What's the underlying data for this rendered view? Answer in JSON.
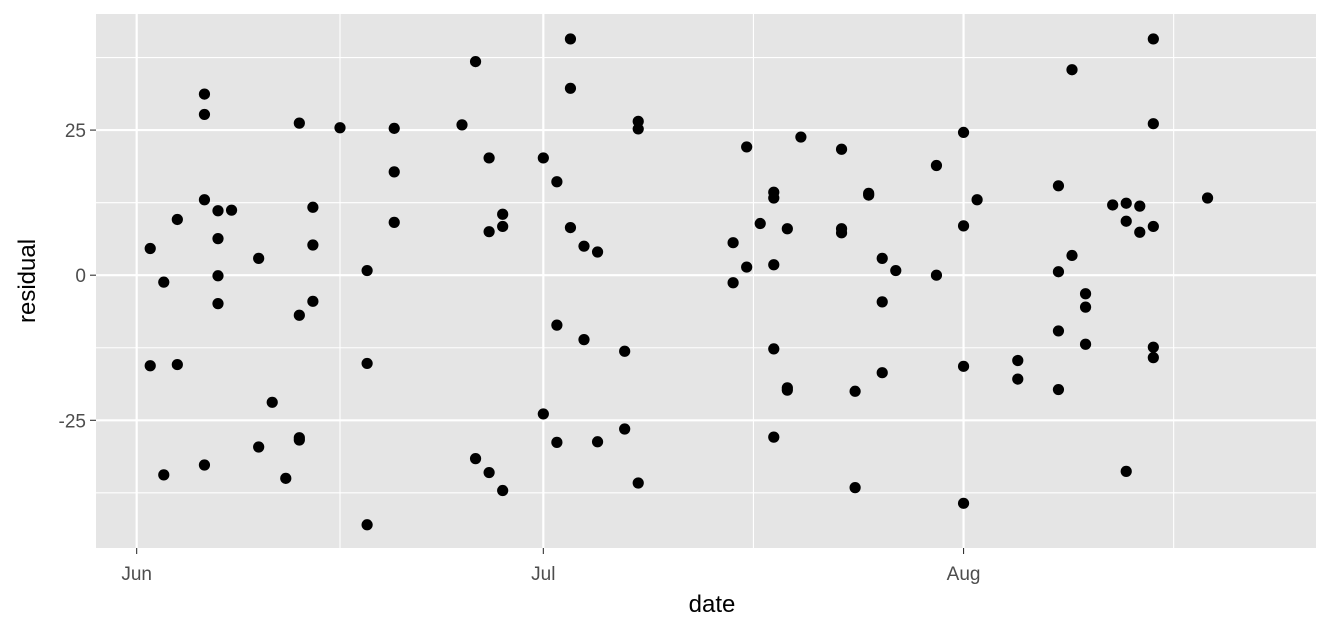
{
  "chart_data": {
    "type": "scatter",
    "xlabel": "date",
    "ylabel": "residual",
    "x_tick_labels": [
      "Jun",
      "Jul",
      "Aug"
    ],
    "x_tick_dates": [
      "2014-06-01",
      "2014-07-01",
      "2014-08-01"
    ],
    "y_tick_labels": [
      "-25",
      "0",
      "25"
    ],
    "y_ticks": [
      -25,
      0,
      25
    ],
    "xlim": [
      "2014-05-29",
      "2014-08-27"
    ],
    "ylim": [
      -47,
      45
    ],
    "grid": true,
    "legend": "none",
    "colors": {
      "panel": "#e5e5e5",
      "grid": "#ffffff",
      "point": "#000000"
    },
    "points": [
      {
        "x": "2014-06-02",
        "y": 4.6
      },
      {
        "x": "2014-06-02",
        "y": -15.6
      },
      {
        "x": "2014-06-03",
        "y": -1.2
      },
      {
        "x": "2014-06-03",
        "y": -34.4
      },
      {
        "x": "2014-06-04",
        "y": 9.6
      },
      {
        "x": "2014-06-04",
        "y": -15.4
      },
      {
        "x": "2014-06-06",
        "y": 31.2
      },
      {
        "x": "2014-06-06",
        "y": 27.7
      },
      {
        "x": "2014-06-06",
        "y": 13.0
      },
      {
        "x": "2014-06-06",
        "y": -32.7
      },
      {
        "x": "2014-06-07",
        "y": 11.1
      },
      {
        "x": "2014-06-07",
        "y": 6.3
      },
      {
        "x": "2014-06-07",
        "y": -0.1
      },
      {
        "x": "2014-06-07",
        "y": -4.9
      },
      {
        "x": "2014-06-08",
        "y": 11.2
      },
      {
        "x": "2014-06-10",
        "y": 2.9
      },
      {
        "x": "2014-06-10",
        "y": -29.6
      },
      {
        "x": "2014-06-11",
        "y": -21.9
      },
      {
        "x": "2014-06-12",
        "y": -35.0
      },
      {
        "x": "2014-06-13",
        "y": 26.2
      },
      {
        "x": "2014-06-13",
        "y": -6.9
      },
      {
        "x": "2014-06-13",
        "y": -28.0
      },
      {
        "x": "2014-06-13",
        "y": -28.4
      },
      {
        "x": "2014-06-14",
        "y": 11.7
      },
      {
        "x": "2014-06-14",
        "y": 5.2
      },
      {
        "x": "2014-06-14",
        "y": -4.5
      },
      {
        "x": "2014-06-16",
        "y": 25.4
      },
      {
        "x": "2014-06-18",
        "y": 0.8
      },
      {
        "x": "2014-06-18",
        "y": -15.2
      },
      {
        "x": "2014-06-18",
        "y": -43.0
      },
      {
        "x": "2014-06-20",
        "y": 25.3
      },
      {
        "x": "2014-06-20",
        "y": 17.8
      },
      {
        "x": "2014-06-20",
        "y": 9.1
      },
      {
        "x": "2014-06-25",
        "y": 25.9
      },
      {
        "x": "2014-06-26",
        "y": 36.8
      },
      {
        "x": "2014-06-26",
        "y": -31.6
      },
      {
        "x": "2014-06-27",
        "y": 20.2
      },
      {
        "x": "2014-06-27",
        "y": 7.5
      },
      {
        "x": "2014-06-27",
        "y": -34.0
      },
      {
        "x": "2014-06-28",
        "y": 10.5
      },
      {
        "x": "2014-06-28",
        "y": 8.4
      },
      {
        "x": "2014-06-28",
        "y": -37.1
      },
      {
        "x": "2014-07-01",
        "y": 20.2
      },
      {
        "x": "2014-07-01",
        "y": -23.9
      },
      {
        "x": "2014-07-02",
        "y": 16.1
      },
      {
        "x": "2014-07-02",
        "y": -8.6
      },
      {
        "x": "2014-07-02",
        "y": -28.8
      },
      {
        "x": "2014-07-03",
        "y": 40.7
      },
      {
        "x": "2014-07-03",
        "y": 32.2
      },
      {
        "x": "2014-07-03",
        "y": 8.2
      },
      {
        "x": "2014-07-04",
        "y": 5.0
      },
      {
        "x": "2014-07-04",
        "y": -11.1
      },
      {
        "x": "2014-07-05",
        "y": 4.0
      },
      {
        "x": "2014-07-05",
        "y": -28.7
      },
      {
        "x": "2014-07-07",
        "y": -13.1
      },
      {
        "x": "2014-07-07",
        "y": -26.5
      },
      {
        "x": "2014-07-08",
        "y": 26.5
      },
      {
        "x": "2014-07-08",
        "y": 25.2
      },
      {
        "x": "2014-07-08",
        "y": -35.8
      },
      {
        "x": "2014-07-15",
        "y": 5.6
      },
      {
        "x": "2014-07-15",
        "y": -1.3
      },
      {
        "x": "2014-07-16",
        "y": 22.1
      },
      {
        "x": "2014-07-16",
        "y": 1.4
      },
      {
        "x": "2014-07-17",
        "y": 8.9
      },
      {
        "x": "2014-07-18",
        "y": 14.3
      },
      {
        "x": "2014-07-18",
        "y": 13.3
      },
      {
        "x": "2014-07-18",
        "y": 1.8
      },
      {
        "x": "2014-07-18",
        "y": -12.7
      },
      {
        "x": "2014-07-18",
        "y": -27.9
      },
      {
        "x": "2014-07-19",
        "y": 8.0
      },
      {
        "x": "2014-07-19",
        "y": -19.4
      },
      {
        "x": "2014-07-19",
        "y": -19.8
      },
      {
        "x": "2014-07-20",
        "y": 23.8
      },
      {
        "x": "2014-07-23",
        "y": 21.7
      },
      {
        "x": "2014-07-23",
        "y": 8.0
      },
      {
        "x": "2014-07-23",
        "y": 7.3
      },
      {
        "x": "2014-07-24",
        "y": -20.0
      },
      {
        "x": "2014-07-24",
        "y": -36.6
      },
      {
        "x": "2014-07-25",
        "y": 14.1
      },
      {
        "x": "2014-07-25",
        "y": 13.8
      },
      {
        "x": "2014-07-26",
        "y": 2.9
      },
      {
        "x": "2014-07-26",
        "y": -4.6
      },
      {
        "x": "2014-07-26",
        "y": -16.8
      },
      {
        "x": "2014-07-27",
        "y": 0.8
      },
      {
        "x": "2014-07-30",
        "y": 18.9
      },
      {
        "x": "2014-07-30",
        "y": 0.0
      },
      {
        "x": "2014-08-01",
        "y": 24.6
      },
      {
        "x": "2014-08-01",
        "y": 8.5
      },
      {
        "x": "2014-08-01",
        "y": -15.7
      },
      {
        "x": "2014-08-01",
        "y": -39.3
      },
      {
        "x": "2014-08-02",
        "y": 13.0
      },
      {
        "x": "2014-08-05",
        "y": -14.7
      },
      {
        "x": "2014-08-05",
        "y": -17.9
      },
      {
        "x": "2014-08-08",
        "y": 15.4
      },
      {
        "x": "2014-08-08",
        "y": 0.6
      },
      {
        "x": "2014-08-08",
        "y": -9.6
      },
      {
        "x": "2014-08-08",
        "y": -19.7
      },
      {
        "x": "2014-08-09",
        "y": 35.4
      },
      {
        "x": "2014-08-09",
        "y": 3.4
      },
      {
        "x": "2014-08-10",
        "y": -3.2
      },
      {
        "x": "2014-08-10",
        "y": -5.5
      },
      {
        "x": "2014-08-10",
        "y": -11.9
      },
      {
        "x": "2014-08-12",
        "y": 12.1
      },
      {
        "x": "2014-08-13",
        "y": 12.4
      },
      {
        "x": "2014-08-13",
        "y": 9.3
      },
      {
        "x": "2014-08-13",
        "y": -33.8
      },
      {
        "x": "2014-08-14",
        "y": 11.9
      },
      {
        "x": "2014-08-14",
        "y": 7.4
      },
      {
        "x": "2014-08-15",
        "y": 40.7
      },
      {
        "x": "2014-08-15",
        "y": 26.1
      },
      {
        "x": "2014-08-15",
        "y": 8.4
      },
      {
        "x": "2014-08-15",
        "y": -12.4
      },
      {
        "x": "2014-08-15",
        "y": -14.2
      },
      {
        "x": "2014-08-19",
        "y": 13.3
      }
    ]
  }
}
